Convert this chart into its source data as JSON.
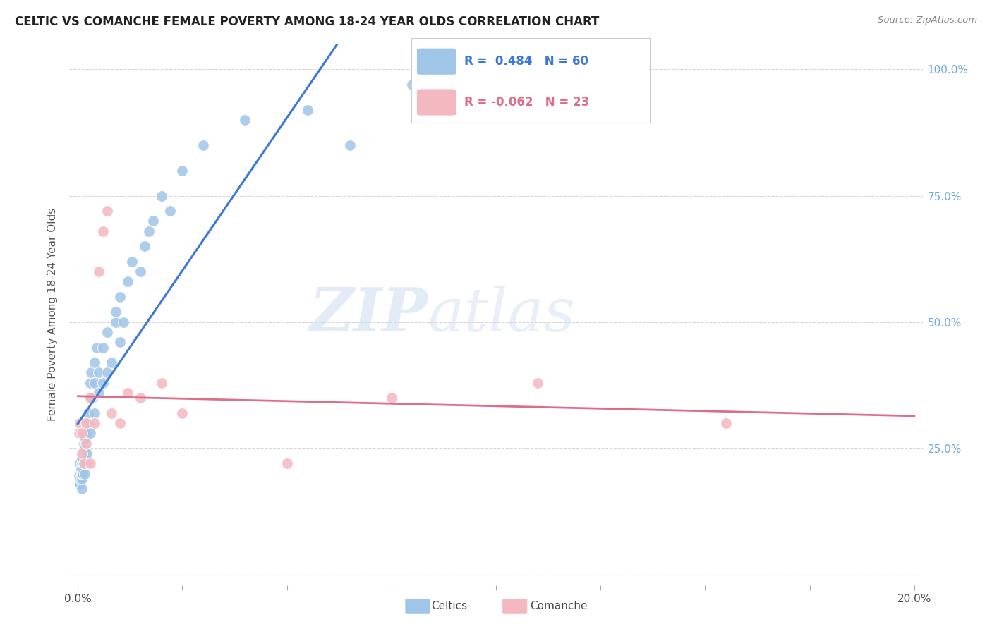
{
  "title": "CELTIC VS COMANCHE FEMALE POVERTY AMONG 18-24 YEAR OLDS CORRELATION CHART",
  "source": "Source: ZipAtlas.com",
  "ylabel": "Female Poverty Among 18-24 Year Olds",
  "watermark_zip": "ZIP",
  "watermark_atlas": "atlas",
  "legend_celtic_R": 0.484,
  "legend_celtic_N": 60,
  "legend_comanche_R": -0.062,
  "legend_comanche_N": 23,
  "celtic_color": "#9fc5e8",
  "comanche_color": "#f4b8c1",
  "celtic_line_color": "#3c78d8",
  "comanche_line_color": "#e06c8a",
  "bg_color": "#ffffff",
  "grid_color": "#cccccc",
  "title_color": "#222222",
  "right_tick_color": "#6fa8dc",
  "celtics_x": [
    0.0003,
    0.0004,
    0.0005,
    0.0006,
    0.0007,
    0.0008,
    0.001,
    0.001,
    0.001,
    0.001,
    0.001,
    0.0012,
    0.0013,
    0.0014,
    0.0015,
    0.0015,
    0.0016,
    0.0017,
    0.0018,
    0.002,
    0.002,
    0.002,
    0.0022,
    0.0025,
    0.0025,
    0.003,
    0.003,
    0.003,
    0.0032,
    0.0035,
    0.004,
    0.004,
    0.004,
    0.0045,
    0.005,
    0.005,
    0.006,
    0.006,
    0.007,
    0.007,
    0.008,
    0.009,
    0.009,
    0.01,
    0.01,
    0.011,
    0.012,
    0.013,
    0.015,
    0.016,
    0.017,
    0.018,
    0.02,
    0.022,
    0.025,
    0.03,
    0.04,
    0.055,
    0.065,
    0.08
  ],
  "celtics_y": [
    0.195,
    0.18,
    0.22,
    0.2,
    0.19,
    0.21,
    0.17,
    0.19,
    0.2,
    0.22,
    0.23,
    0.2,
    0.21,
    0.22,
    0.24,
    0.26,
    0.2,
    0.25,
    0.27,
    0.22,
    0.28,
    0.3,
    0.24,
    0.3,
    0.32,
    0.28,
    0.35,
    0.38,
    0.4,
    0.35,
    0.32,
    0.38,
    0.42,
    0.45,
    0.36,
    0.4,
    0.38,
    0.45,
    0.4,
    0.48,
    0.42,
    0.5,
    0.52,
    0.46,
    0.55,
    0.5,
    0.58,
    0.62,
    0.6,
    0.65,
    0.68,
    0.7,
    0.75,
    0.72,
    0.8,
    0.85,
    0.9,
    0.92,
    0.85,
    0.97
  ],
  "comanche_x": [
    0.0003,
    0.0005,
    0.001,
    0.001,
    0.0015,
    0.002,
    0.002,
    0.003,
    0.003,
    0.004,
    0.005,
    0.006,
    0.007,
    0.008,
    0.01,
    0.012,
    0.015,
    0.02,
    0.025,
    0.05,
    0.075,
    0.11,
    0.155
  ],
  "comanche_y": [
    0.28,
    0.3,
    0.24,
    0.28,
    0.22,
    0.26,
    0.3,
    0.22,
    0.35,
    0.3,
    0.6,
    0.68,
    0.72,
    0.32,
    0.3,
    0.36,
    0.35,
    0.38,
    0.32,
    0.22,
    0.35,
    0.38,
    0.3
  ],
  "xtick_positions": [
    0.0,
    0.025,
    0.05,
    0.075,
    0.1,
    0.125,
    0.15,
    0.175,
    0.2
  ],
  "ytick_positions": [
    0.0,
    0.25,
    0.5,
    0.75,
    1.0
  ],
  "xmin": 0.0,
  "xmax": 0.2,
  "ymin": 0.0,
  "ymax": 1.05
}
